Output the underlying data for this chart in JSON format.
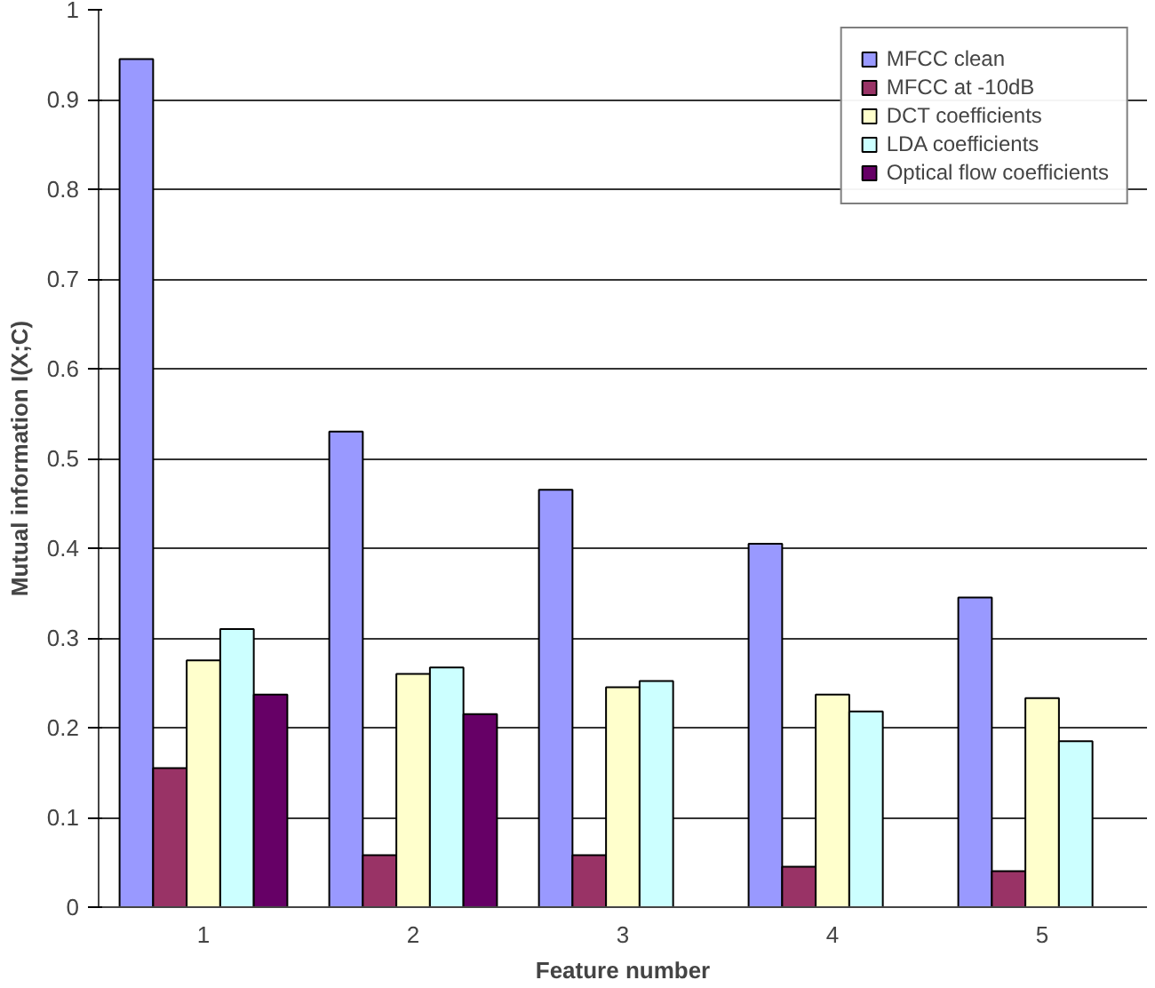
{
  "chart_data": {
    "type": "bar",
    "xlabel": "Feature number",
    "ylabel": "Mutual information I(X;C)",
    "categories": [
      "1",
      "2",
      "3",
      "4",
      "5"
    ],
    "series": [
      {
        "name": "MFCC clean",
        "color": "#9999ff",
        "values": [
          0.945,
          0.53,
          0.465,
          0.405,
          0.345
        ]
      },
      {
        "name": "MFCC at -10dB",
        "color": "#993366",
        "values": [
          0.155,
          0.058,
          0.058,
          0.045,
          0.04
        ]
      },
      {
        "name": "DCT coefficients",
        "color": "#ffffcc",
        "values": [
          0.275,
          0.26,
          0.245,
          0.237,
          0.233
        ]
      },
      {
        "name": "LDA coefficients",
        "color": "#ccffff",
        "values": [
          0.31,
          0.267,
          0.252,
          0.218,
          0.185
        ]
      },
      {
        "name": "Optical flow coefficients",
        "color": "#660066",
        "values": [
          0.237,
          0.215,
          null,
          null,
          null
        ]
      }
    ],
    "ylim": [
      0,
      1
    ],
    "yticks": [
      0,
      0.1,
      0.2,
      0.3,
      0.4,
      0.5,
      0.6,
      0.7,
      0.8,
      0.9,
      1
    ],
    "grid": "y",
    "legend": "top right"
  }
}
